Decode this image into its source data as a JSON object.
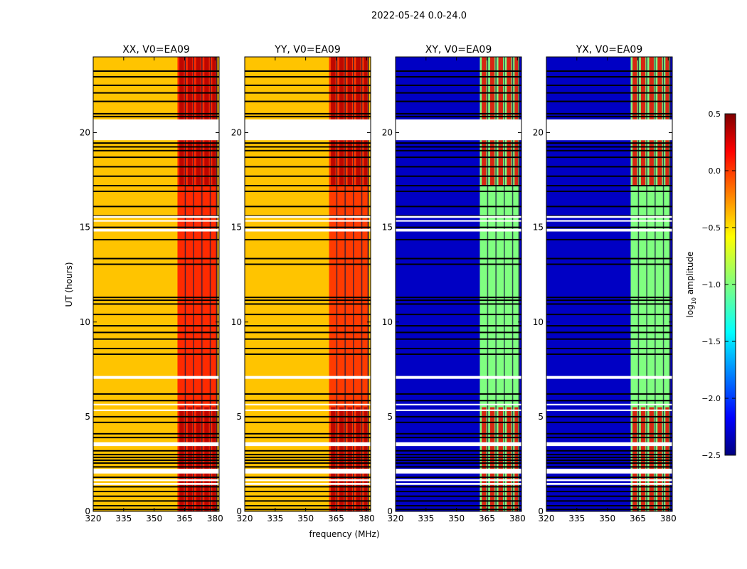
{
  "figure_title": "2022-05-24 0.0-24.0",
  "colorbar": {
    "label": "log$_{10}$ amplitude",
    "label_main": "log",
    "label_sub": "10",
    "label_rest": " amplitude",
    "range": [
      -2.5,
      0.5
    ],
    "ticks": [
      0.5,
      0.0,
      -0.5,
      -1.0,
      -1.5,
      -2.0,
      -2.5
    ],
    "tick_labels": [
      "0.5",
      "0.0",
      "−0.5",
      "−1.0",
      "−1.5",
      "−2.0",
      "−2.5"
    ],
    "colormap": "jet"
  },
  "chart_data": {
    "type": "heatmap",
    "layout": "1x4 panels, shared axes",
    "xlabel": "frequency (MHz)",
    "ylabel": "UT (hours)",
    "xlim": [
      320,
      382
    ],
    "ylim": [
      0,
      24
    ],
    "xticks": [
      320,
      335,
      350,
      365,
      380
    ],
    "xtick_labels": [
      "320",
      "335",
      "350",
      "365",
      "380"
    ],
    "yticks": [
      0,
      5,
      10,
      15,
      20
    ],
    "ytick_labels": [
      "0",
      "5",
      "10",
      "15",
      "20"
    ],
    "channel_boundaries_mhz": [
      361.5,
      365.6,
      369.7,
      373.8,
      377.9,
      381.0
    ],
    "missing_data_hours": [
      [
        0.0,
        0.0
      ],
      [
        1.4,
        1.5
      ],
      [
        1.6,
        1.7
      ],
      [
        2.0,
        2.25
      ],
      [
        3.45,
        3.65
      ],
      [
        5.3,
        5.38
      ],
      [
        5.6,
        5.68
      ],
      [
        7.0,
        7.15
      ],
      [
        14.78,
        14.92
      ],
      [
        15.3,
        15.38
      ],
      [
        15.5,
        15.6
      ],
      [
        19.6,
        20.7
      ]
    ],
    "flag_hours": [
      0.1,
      0.3,
      0.55,
      0.8,
      1.05,
      1.3,
      1.8,
      2.35,
      2.55,
      2.7,
      2.85,
      3.0,
      3.2,
      3.9,
      4.1,
      4.7,
      5.0,
      5.85,
      6.2,
      8.3,
      8.6,
      9.1,
      9.45,
      9.8,
      10.4,
      10.95,
      11.15,
      11.3,
      13.05,
      13.35,
      14.35,
      15.0,
      15.6,
      16.1,
      16.9,
      17.2,
      17.7,
      18.2,
      18.7,
      19.05,
      19.25,
      19.45,
      20.85,
      21.0,
      21.65,
      22.1,
      22.5,
      22.95,
      23.25
    ],
    "panels": [
      {
        "title": "XX, V0=EA09",
        "pol": "XX",
        "background_log_amp": -0.45,
        "band_log_amp": 0.0,
        "band_peak_log_amp": 0.35
      },
      {
        "title": "YY, V0=EA09",
        "pol": "YY",
        "background_log_amp": -0.45,
        "band_log_amp": -0.05,
        "band_peak_log_amp": 0.35
      },
      {
        "title": "XY, V0=EA09",
        "pol": "XY",
        "background_log_amp": -2.3,
        "band_log_amp": -1.0,
        "band_peak_log_amp": 0.2
      },
      {
        "title": "YX, V0=EA09",
        "pol": "YX",
        "background_log_amp": -2.3,
        "band_log_amp": -1.0,
        "band_peak_log_amp": 0.2
      }
    ]
  }
}
